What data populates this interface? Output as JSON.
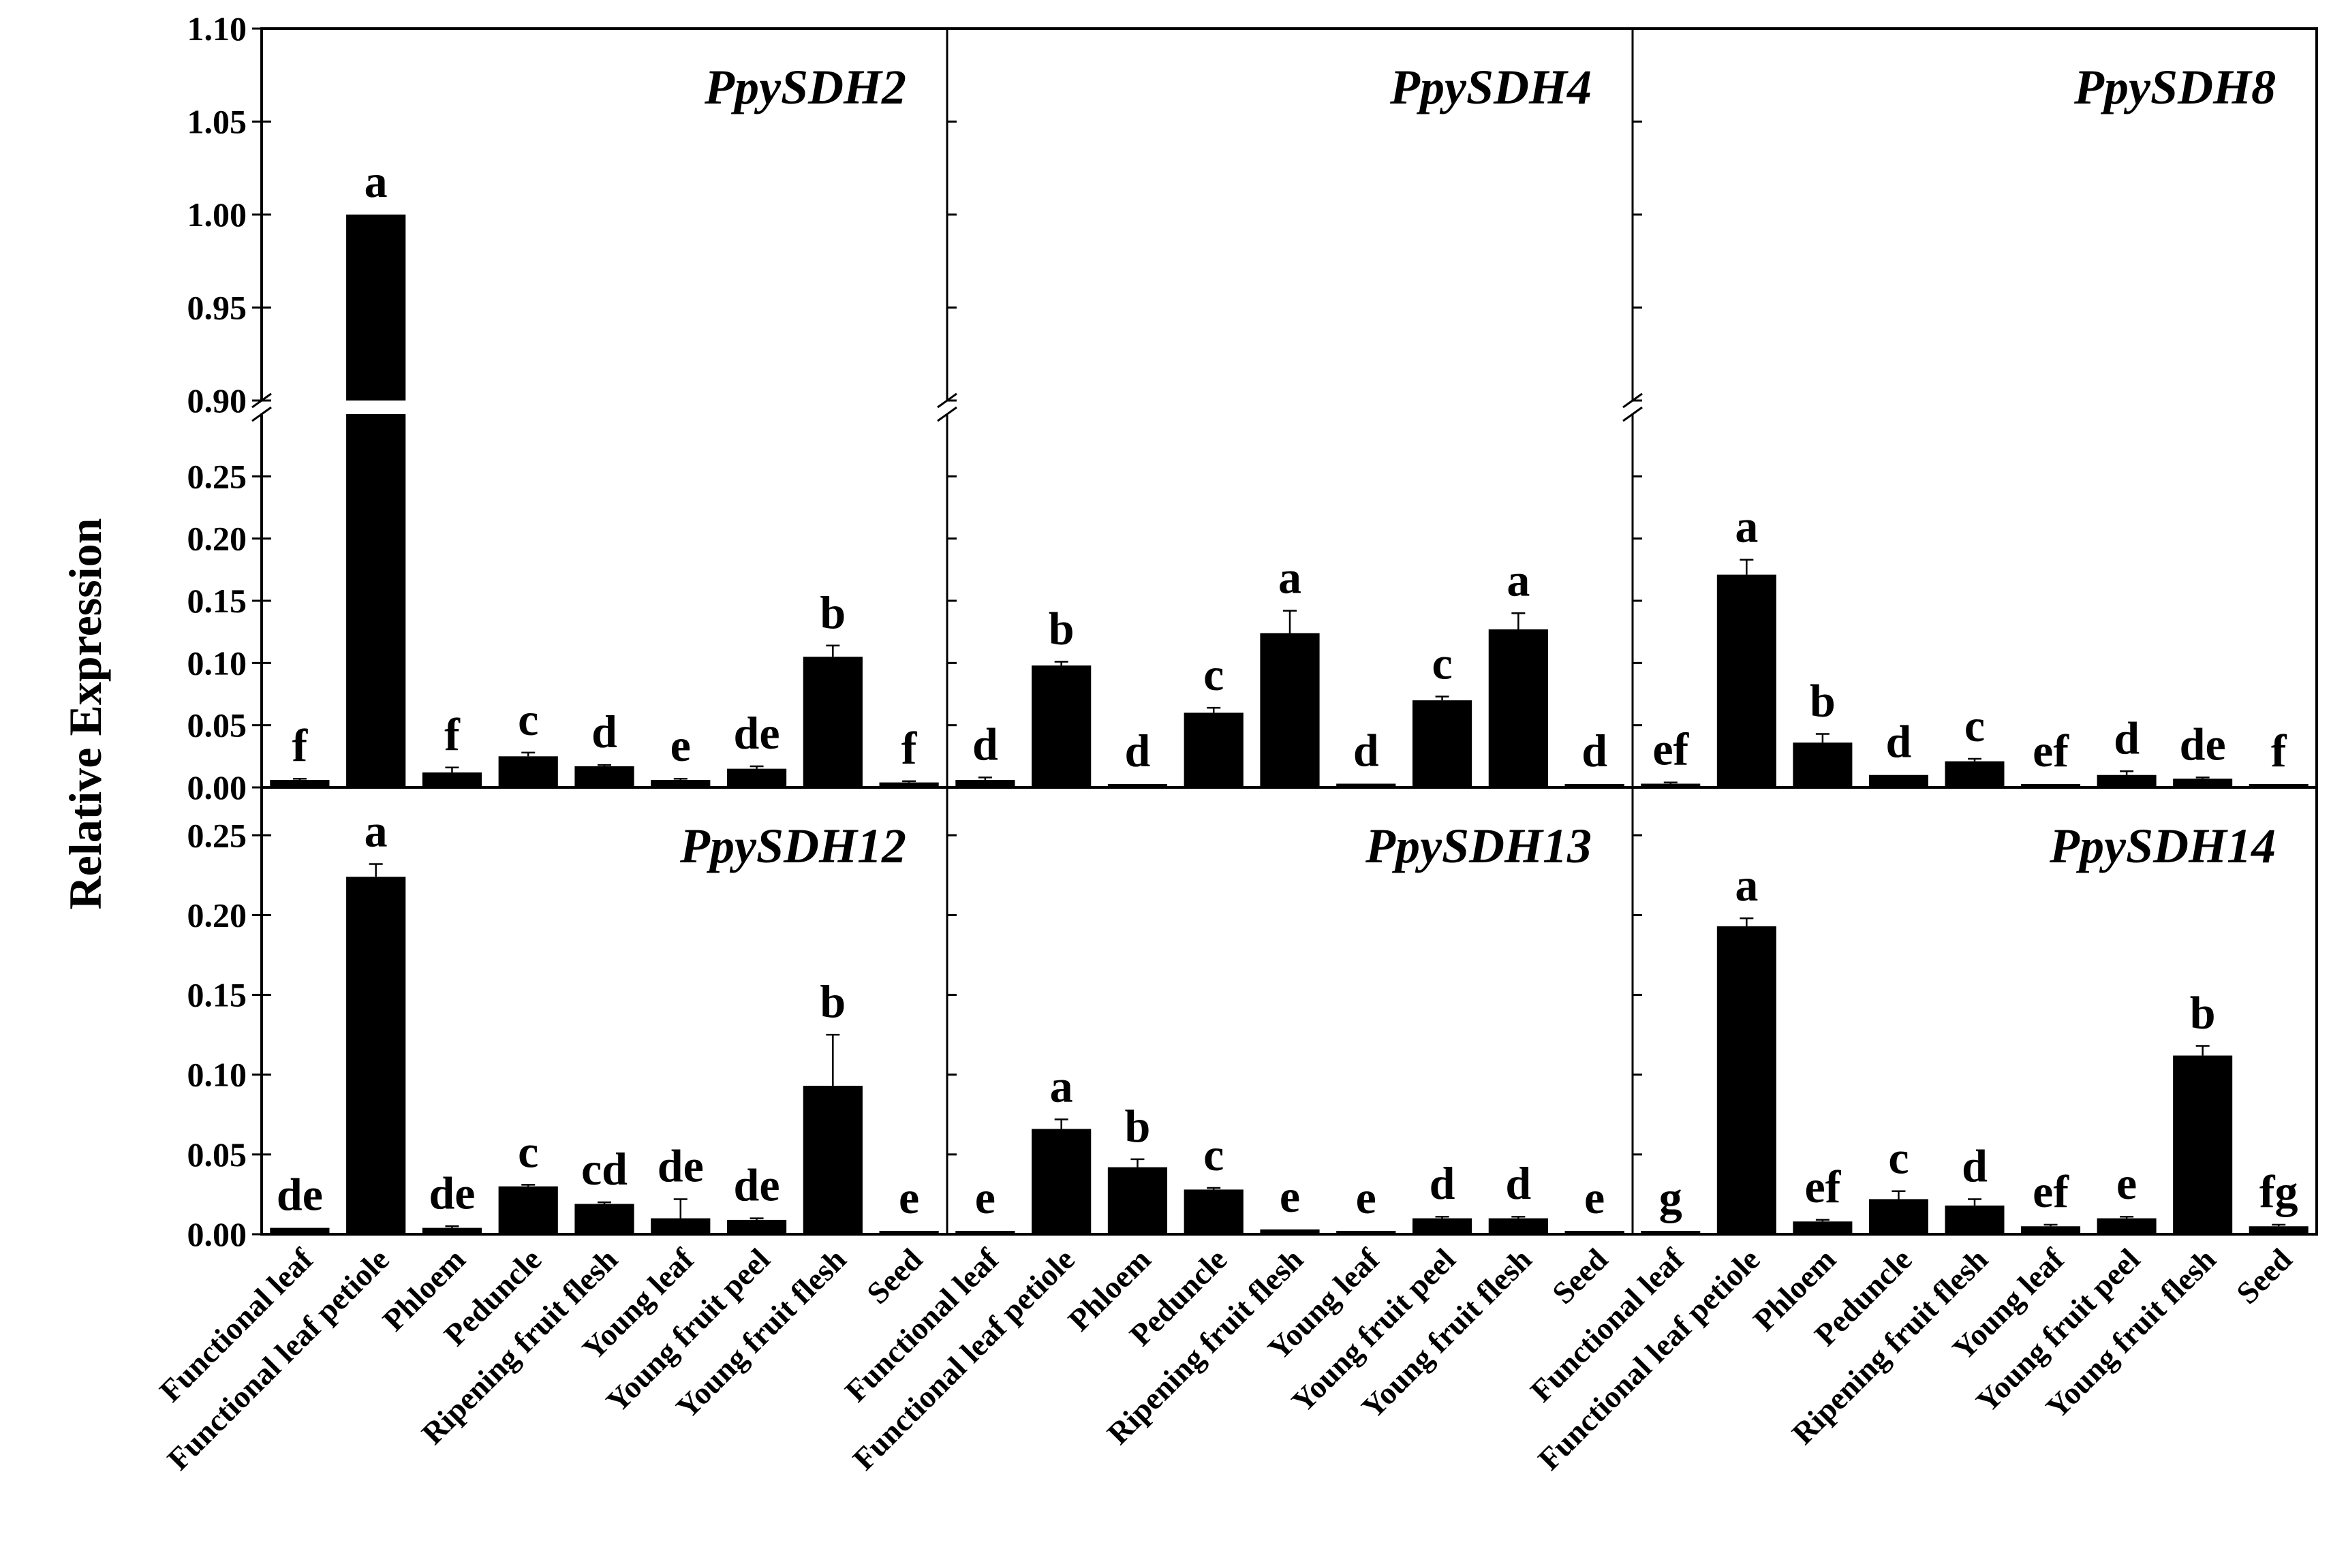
{
  "chart_data": {
    "type": "bar",
    "ylabel": "Relative Expression",
    "categories": [
      "Functional leaf",
      "Functional  leaf petiole",
      "Phloem",
      "Peduncle",
      "Ripening fruit flesh",
      "Young leaf",
      "Young fruit peel",
      "Young fruit flesh",
      "Seed"
    ],
    "top_row": {
      "axis_break": true,
      "lower_ylim": [
        0,
        0.3
      ],
      "lower_ticks": [
        "0.00",
        "0.05",
        "0.10",
        "0.15",
        "0.20",
        "0.25"
      ],
      "upper_ylim": [
        0.9,
        1.1
      ],
      "upper_ticks": [
        "0.90",
        "0.95",
        "1.00",
        "1.05",
        "1.10"
      ]
    },
    "bottom_row": {
      "ylim": [
        0,
        0.28
      ],
      "ticks": [
        "0.00",
        "0.05",
        "0.10",
        "0.15",
        "0.20",
        "0.25"
      ]
    },
    "panels": [
      {
        "title": "PpySDH2",
        "row": "top",
        "values": [
          0.006,
          1.0,
          0.012,
          0.025,
          0.017,
          0.006,
          0.015,
          0.105,
          0.004
        ],
        "errors": [
          0.001,
          0.0,
          0.004,
          0.003,
          0.001,
          0.001,
          0.002,
          0.009,
          0.001
        ],
        "letters": [
          "f",
          "a",
          "f",
          "c",
          "d",
          "e",
          "de",
          "b",
          "f"
        ]
      },
      {
        "title": "PpySDH4",
        "row": "top",
        "values": [
          0.006,
          0.098,
          0.002,
          0.06,
          0.124,
          0.003,
          0.07,
          0.127,
          0.002
        ],
        "errors": [
          0.002,
          0.003,
          0.0,
          0.004,
          0.018,
          0.0,
          0.003,
          0.013,
          0.0
        ],
        "letters": [
          "d",
          "b",
          "d",
          "c",
          "a",
          "d",
          "c",
          "a",
          "d"
        ]
      },
      {
        "title": "PpySDH8",
        "row": "top",
        "values": [
          0.003,
          0.171,
          0.036,
          0.01,
          0.021,
          0.002,
          0.01,
          0.007,
          0.001
        ],
        "errors": [
          0.001,
          0.012,
          0.007,
          0.0,
          0.002,
          0.0,
          0.003,
          0.001,
          0.0
        ],
        "letters": [
          "ef",
          "a",
          "b",
          "d",
          "c",
          "ef",
          "d",
          "de",
          "f"
        ]
      },
      {
        "title": "PpySDH12",
        "row": "bottom",
        "values": [
          0.004,
          0.224,
          0.004,
          0.03,
          0.019,
          0.01,
          0.009,
          0.093,
          0.001
        ],
        "errors": [
          0.0,
          0.008,
          0.001,
          0.001,
          0.001,
          0.012,
          0.001,
          0.032,
          0.0
        ],
        "letters": [
          "de",
          "a",
          "de",
          "c",
          "cd",
          "de",
          "de",
          "b",
          "e"
        ]
      },
      {
        "title": "PpySDH13",
        "row": "bottom",
        "values": [
          0.002,
          0.066,
          0.042,
          0.028,
          0.003,
          0.001,
          0.01,
          0.01,
          0.001
        ],
        "errors": [
          0.0,
          0.006,
          0.005,
          0.001,
          0.0,
          0.0,
          0.001,
          0.001,
          0.0
        ],
        "letters": [
          "e",
          "a",
          "b",
          "c",
          "e",
          "e",
          "d",
          "d",
          "e"
        ]
      },
      {
        "title": "PpySDH14",
        "row": "bottom",
        "values": [
          0.001,
          0.193,
          0.008,
          0.022,
          0.018,
          0.005,
          0.01,
          0.112,
          0.005
        ],
        "errors": [
          0.0,
          0.005,
          0.001,
          0.005,
          0.004,
          0.001,
          0.001,
          0.006,
          0.001
        ],
        "letters": [
          "g",
          "a",
          "ef",
          "c",
          "d",
          "ef",
          "e",
          "b",
          "fg"
        ]
      }
    ]
  }
}
